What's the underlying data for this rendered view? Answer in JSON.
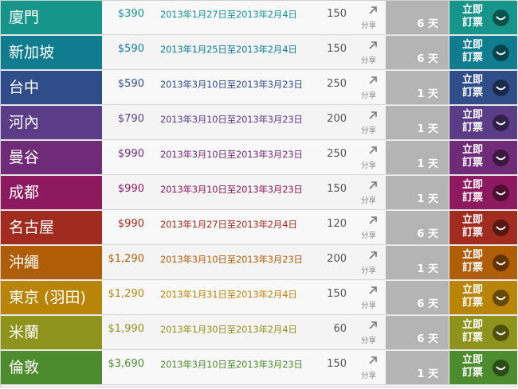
{
  "rows": [
    {
      "city": "廈門",
      "price": "$390",
      "dates": "2013年1月27日至2013年2月4日",
      "duration": "150",
      "share": "分享",
      "days": "6 天",
      "book": "立即訂票",
      "color": "#16958a"
    },
    {
      "city": "新加坡",
      "price": "$590",
      "dates": "2013年1月25日至2013年2月4日",
      "duration": "150",
      "share": "分享",
      "days": "6 天",
      "book": "立即訂票",
      "color": "#0f7d8f"
    },
    {
      "city": "台中",
      "price": "$590",
      "dates": "2013年3月10日至2013年3月23日",
      "duration": "250",
      "share": "分享",
      "days": "1 天",
      "book": "立即訂票",
      "color": "#2f4e89"
    },
    {
      "city": "河內",
      "price": "$790",
      "dates": "2013年3月10日至2013年3月23日",
      "duration": "200",
      "share": "分享",
      "days": "1 天",
      "book": "立即訂票",
      "color": "#5a3c87"
    },
    {
      "city": "曼谷",
      "price": "$990",
      "dates": "2013年3月10日至2013年3月23日",
      "duration": "250",
      "share": "分享",
      "days": "1 天",
      "book": "立即訂票",
      "color": "#6f2a78"
    },
    {
      "city": "成都",
      "price": "$990",
      "dates": "2013年3月10日至2013年3月23日",
      "duration": "150",
      "share": "分享",
      "days": "1 天",
      "book": "立即訂票",
      "color": "#8d1a5e"
    },
    {
      "city": "名古屋",
      "price": "$990",
      "dates": "2013年1月27日至2013年2月4日",
      "duration": "120",
      "share": "分享",
      "days": "6 天",
      "book": "立即訂票",
      "color": "#a12b1e"
    },
    {
      "city": "沖繩",
      "price": "$1,290",
      "dates": "2013年3月10日至2013年3月23日",
      "duration": "200",
      "share": "分享",
      "days": "1 天",
      "book": "立即訂票",
      "color": "#b05d07"
    },
    {
      "city": "東京 (羽田)",
      "price": "$1,290",
      "dates": "2013年1月31日至2013年2月4日",
      "duration": "150",
      "share": "分享",
      "days": "6 天",
      "book": "立即訂票",
      "color": "#b88508"
    },
    {
      "city": "米蘭",
      "price": "$1,990",
      "dates": "2013年1月30日至2013年2月4日",
      "duration": "60",
      "share": "分享",
      "days": "6 天",
      "book": "立即訂票",
      "color": "#8e941b"
    },
    {
      "city": "倫敦",
      "price": "$3,690",
      "dates": "2013年3月10日至2013年3月23日",
      "duration": "150",
      "share": "分享",
      "days": "1 天",
      "book": "立即訂票",
      "color": "#4d8c2e"
    }
  ]
}
